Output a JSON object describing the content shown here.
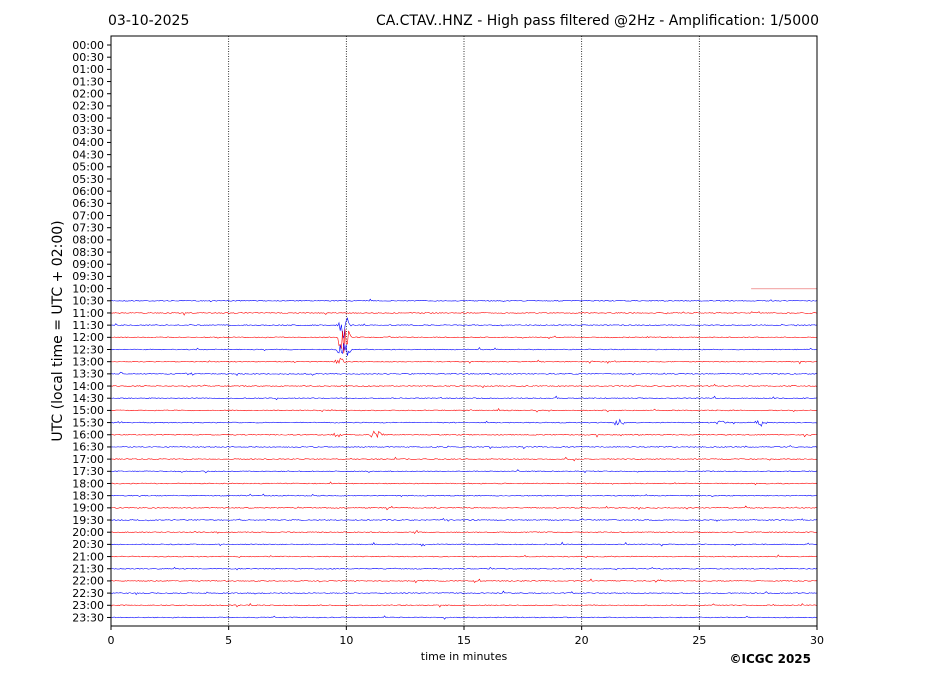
{
  "chart_data": {
    "type": "line",
    "title_left": "03-10-2025",
    "title_right": "CA.CTAV..HNZ - High pass filtered @2Hz - Amplification: 1/5000",
    "xlabel": "time in minutes",
    "ylabel": "UTC (local time = UTC + 02:00)",
    "xlim": [
      0,
      30
    ],
    "x_ticks": [
      "0",
      "5",
      "10",
      "15",
      "20",
      "25",
      "30"
    ],
    "x_tick_values": [
      0,
      5,
      10,
      15,
      20,
      25,
      30
    ],
    "grid": "vertical dotted lines at 5-minute intervals",
    "rows": [
      "00:00",
      "00:30",
      "01:00",
      "01:30",
      "02:00",
      "02:30",
      "03:00",
      "03:30",
      "04:00",
      "04:30",
      "05:00",
      "05:30",
      "06:00",
      "06:30",
      "07:00",
      "07:30",
      "08:00",
      "08:30",
      "09:00",
      "09:30",
      "10:00",
      "10:30",
      "11:00",
      "11:30",
      "12:00",
      "12:30",
      "13:00",
      "13:30",
      "14:00",
      "14:30",
      "15:00",
      "15:30",
      "16:00",
      "16:30",
      "17:00",
      "17:30",
      "18:00",
      "18:30",
      "19:00",
      "19:30",
      "20:00",
      "20:30",
      "21:00",
      "21:30",
      "22:00",
      "22:30",
      "23:00",
      "23:30"
    ],
    "trace_colors": [
      "#ff0000",
      "#0000ff"
    ],
    "first_trace_row": "10:00",
    "first_trace_start_minute": 27.2,
    "events": [
      {
        "row": "11:30",
        "minute": 9.9,
        "amplitude": 14
      },
      {
        "row": "12:00",
        "minute": 9.9,
        "amplitude": 20
      },
      {
        "row": "12:30",
        "minute": 9.9,
        "amplitude": 12
      },
      {
        "row": "13:00",
        "minute": 9.7,
        "amplitude": 4
      },
      {
        "row": "13:30",
        "minute": 3.3,
        "amplitude": 2
      },
      {
        "row": "15:30",
        "minute": 21.6,
        "amplitude": 5
      },
      {
        "row": "15:30",
        "minute": 27.6,
        "amplitude": 4
      },
      {
        "row": "15:30",
        "minute": 25.9,
        "amplitude": 3
      },
      {
        "row": "16:00",
        "minute": 11.3,
        "amplitude": 6
      },
      {
        "row": "16:00",
        "minute": 9.6,
        "amplitude": 3
      },
      {
        "row": "22:00",
        "minute": 23.3,
        "amplitude": 2
      }
    ]
  },
  "footer": {
    "copyright": "©ICGC 2025"
  },
  "colors": {
    "red": "#ff0000",
    "blue": "#0000ff",
    "pending": "#f4b0b0"
  }
}
